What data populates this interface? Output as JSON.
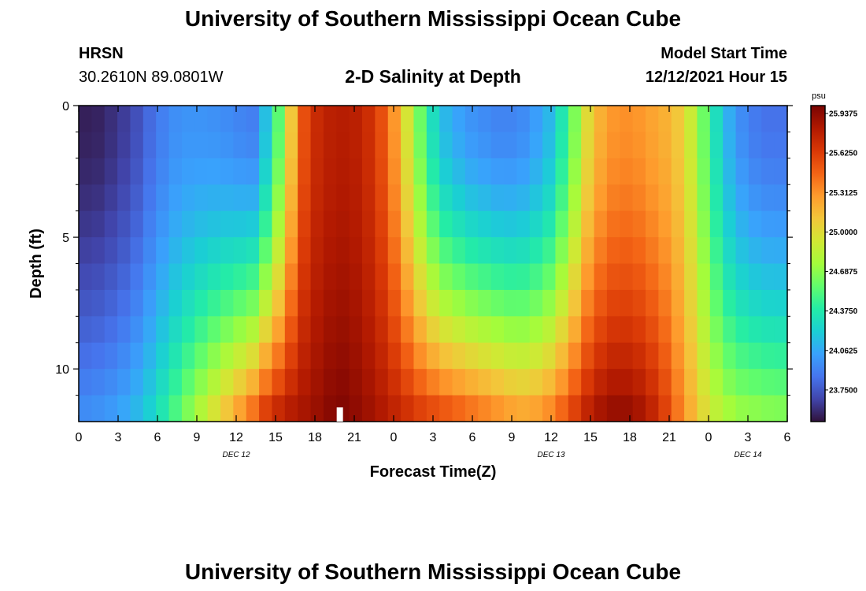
{
  "page": {
    "title_top": "University of Southern Mississippi Ocean Cube",
    "title_bottom": "University of Southern Mississippi Ocean Cube",
    "station_name": "HRSN",
    "station_coords": "30.2610N  89.0801W",
    "plot_title": "2-D Salinity at Depth",
    "model_start_label": "Model Start Time",
    "model_start_value": "12/12/2021 Hour 15"
  },
  "chart_data": {
    "type": "heatmap",
    "title": "2-D Salinity at Depth",
    "xlabel": "Forecast Time(Z)",
    "ylabel": "Depth (ft)",
    "x_hours": [
      0,
      54
    ],
    "x_tick_labels": [
      "0",
      "3",
      "6",
      "9",
      "12",
      "15",
      "18",
      "21",
      "0",
      "3",
      "6",
      "9",
      "12",
      "15",
      "18",
      "21",
      "0",
      "3",
      "6"
    ],
    "date_labels": [
      {
        "text": "DEC 12",
        "hour": 12
      },
      {
        "text": "DEC 13",
        "hour": 36
      },
      {
        "text": "DEC 14",
        "hour": 51
      }
    ],
    "ylim": [
      0,
      12
    ],
    "y_tick_labels": [
      "0",
      "5",
      "10"
    ],
    "y_tick_values": [
      0,
      5,
      10
    ],
    "colorbar": {
      "unit": "psu",
      "min": 23.5,
      "max": 26.0,
      "tick_labels": [
        "25.9375",
        "25.6250",
        "25.3125",
        "25.0000",
        "24.6875",
        "24.3750",
        "24.0625",
        "23.7500"
      ],
      "tick_values": [
        25.9375,
        25.625,
        25.3125,
        25.0,
        24.6875,
        24.375,
        24.0625,
        23.75
      ],
      "colors": [
        "#30123b",
        "#4145ab",
        "#4675ed",
        "#39a2fc",
        "#1bcfd4",
        "#24eca6",
        "#61fc6c",
        "#a4fc3b",
        "#d1e834",
        "#f3c63a",
        "#fe9b2d",
        "#f36315",
        "#d93806",
        "#b11901",
        "#7a0402"
      ]
    },
    "hours": [
      0,
      1,
      2,
      3,
      4,
      5,
      6,
      7,
      8,
      9,
      10,
      11,
      12,
      13,
      14,
      15,
      16,
      17,
      18,
      19,
      20,
      21,
      22,
      23,
      24,
      25,
      26,
      27,
      28,
      29,
      30,
      31,
      32,
      33,
      34,
      35,
      36,
      37,
      38,
      39,
      40,
      41,
      42,
      43,
      44,
      45,
      46,
      47,
      48,
      49,
      50,
      51,
      52,
      53,
      54
    ],
    "depths": [
      0.5,
      1.5,
      2.5,
      3.5,
      4.5,
      5.5,
      6.5,
      7.5,
      8.5,
      9.5,
      10.5,
      11.5
    ],
    "surface_salinity": [
      23.55,
      23.56,
      23.6,
      23.65,
      23.72,
      23.82,
      23.9,
      23.96,
      23.98,
      23.98,
      23.97,
      23.95,
      23.92,
      23.9,
      24.15,
      24.55,
      25.1,
      25.55,
      25.72,
      25.78,
      25.8,
      25.78,
      25.7,
      25.55,
      25.3,
      24.95,
      24.6,
      24.3,
      24.12,
      24.04,
      23.98,
      23.95,
      23.92,
      23.92,
      23.95,
      24.02,
      24.12,
      24.35,
      24.65,
      25.0,
      25.2,
      25.3,
      25.32,
      25.3,
      25.25,
      25.2,
      25.1,
      24.9,
      24.6,
      24.3,
      24.08,
      23.95,
      23.88,
      23.85,
      23.85
    ],
    "bottom_salinity": [
      23.95,
      23.97,
      24.0,
      24.05,
      24.12,
      24.22,
      24.35,
      24.5,
      24.65,
      24.8,
      24.95,
      25.1,
      25.25,
      25.4,
      25.6,
      25.72,
      25.8,
      25.85,
      25.9,
      25.95,
      25.97,
      25.93,
      25.88,
      25.82,
      25.75,
      25.68,
      25.6,
      25.55,
      25.5,
      25.45,
      25.4,
      25.35,
      25.3,
      25.25,
      25.22,
      25.25,
      25.32,
      25.45,
      25.6,
      25.75,
      25.85,
      25.9,
      25.9,
      25.85,
      25.75,
      25.6,
      25.4,
      25.2,
      25.0,
      24.85,
      24.75,
      24.7,
      24.68,
      24.66,
      24.65
    ]
  }
}
